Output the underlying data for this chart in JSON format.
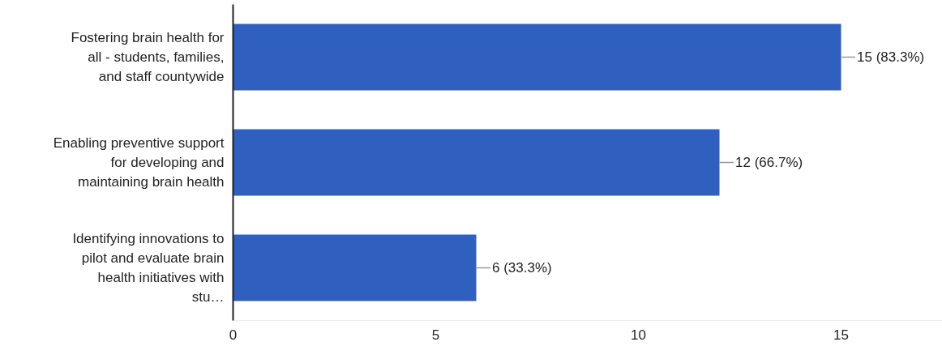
{
  "chart_data": {
    "type": "bar",
    "orientation": "horizontal",
    "categories": [
      "Fostering brain health for all - students, families, and staff countywide",
      "Enabling preventive support for developing and maintaining brain health",
      "Identifying innovations to pilot and evaluate brain health initiatives with stu…"
    ],
    "values": [
      15,
      12,
      6
    ],
    "value_labels": [
      "15 (83.3%)",
      "12 (66.7%)",
      "6 (33.3%)"
    ],
    "color": "#2f5fbf",
    "xlim": [
      0,
      17.5
    ],
    "xticks": [
      0,
      5,
      10,
      15
    ],
    "grid": false
  }
}
